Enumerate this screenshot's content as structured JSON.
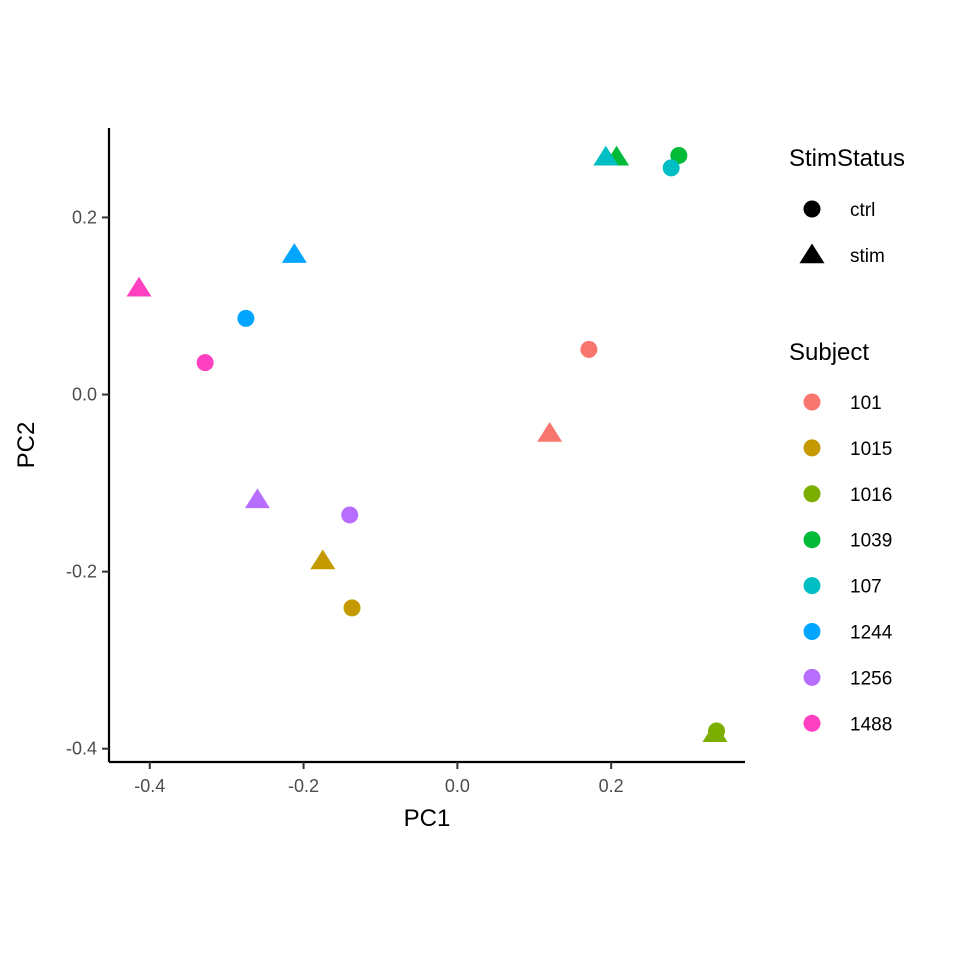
{
  "chart_data": {
    "type": "scatter",
    "xlabel": "PC1",
    "ylabel": "PC2",
    "xlim": [
      -0.453,
      0.374
    ],
    "ylim": [
      -0.415,
      0.301
    ],
    "x_ticks": [
      -0.4,
      -0.2,
      0.0,
      0.2
    ],
    "x_tick_labels": [
      "-0.4",
      "-0.2",
      "0.0",
      "0.2"
    ],
    "y_ticks": [
      -0.4,
      -0.2,
      0.0,
      0.2
    ],
    "y_tick_labels": [
      "-0.4",
      "-0.2",
      "0.0",
      "0.2"
    ],
    "grid": false,
    "legend_position": "right",
    "shape_legend": {
      "title": "StimStatus",
      "entries": [
        {
          "label": "ctrl",
          "shape": "circle"
        },
        {
          "label": "stim",
          "shape": "triangle"
        }
      ]
    },
    "color_legend": {
      "title": "Subject",
      "entries": [
        {
          "label": "101",
          "color": "#F8766D"
        },
        {
          "label": "1015",
          "color": "#C49A00"
        },
        {
          "label": "1016",
          "color": "#7CAE00"
        },
        {
          "label": "1039",
          "color": "#00BA38"
        },
        {
          "label": "107",
          "color": "#00BFC4"
        },
        {
          "label": "1244",
          "color": "#00A5FF"
        },
        {
          "label": "1256",
          "color": "#B76EFF"
        },
        {
          "label": "1488",
          "color": "#FF40C0"
        }
      ]
    },
    "points": [
      {
        "subject": "101",
        "status": "ctrl",
        "x": 0.171,
        "y": 0.051
      },
      {
        "subject": "101",
        "status": "stim",
        "x": 0.12,
        "y": -0.044
      },
      {
        "subject": "1015",
        "status": "ctrl",
        "x": -0.137,
        "y": -0.241
      },
      {
        "subject": "1015",
        "status": "stim",
        "x": -0.175,
        "y": -0.188
      },
      {
        "subject": "1016",
        "status": "ctrl",
        "x": 0.337,
        "y": -0.38
      },
      {
        "subject": "1016",
        "status": "stim",
        "x": 0.335,
        "y": -0.383
      },
      {
        "subject": "1039",
        "status": "ctrl",
        "x": 0.288,
        "y": 0.27
      },
      {
        "subject": "1039",
        "status": "stim",
        "x": 0.207,
        "y": 0.268
      },
      {
        "subject": "107",
        "status": "ctrl",
        "x": 0.278,
        "y": 0.256
      },
      {
        "subject": "107",
        "status": "stim",
        "x": 0.193,
        "y": 0.268
      },
      {
        "subject": "1244",
        "status": "ctrl",
        "x": -0.275,
        "y": 0.086
      },
      {
        "subject": "1244",
        "status": "stim",
        "x": -0.212,
        "y": 0.158
      },
      {
        "subject": "1256",
        "status": "ctrl",
        "x": -0.14,
        "y": -0.136
      },
      {
        "subject": "1256",
        "status": "stim",
        "x": -0.26,
        "y": -0.119
      },
      {
        "subject": "1488",
        "status": "ctrl",
        "x": -0.328,
        "y": 0.036
      },
      {
        "subject": "1488",
        "status": "stim",
        "x": -0.414,
        "y": 0.12
      }
    ]
  }
}
